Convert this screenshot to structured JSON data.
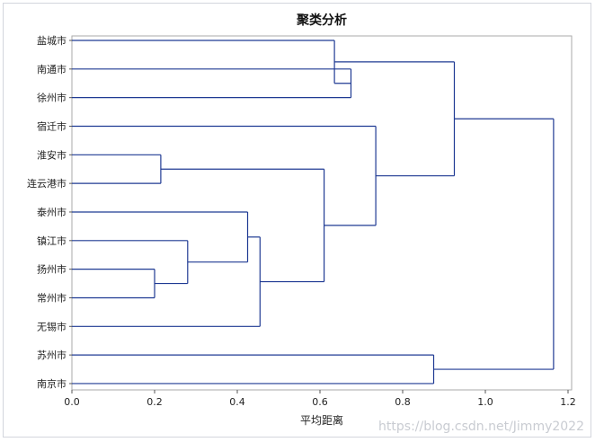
{
  "chart_data": {
    "type": "dendrogram",
    "title": "聚类分析",
    "xlabel": "平均距离",
    "ylabel": "",
    "xlim": [
      0,
      1.2
    ],
    "xticks": [
      "0.0",
      "0.2",
      "0.4",
      "0.6",
      "0.8",
      "1.0",
      "1.2"
    ],
    "leaves": [
      "盐城市",
      "南通市",
      "徐州市",
      "宿迁市",
      "淮安市",
      "连云港市",
      "泰州市",
      "镇江市",
      "扬州市",
      "常州市",
      "无锡市",
      "苏州市",
      "南京市"
    ],
    "merges": [
      {
        "left": "扬州市",
        "right": "常州市",
        "height": 0.2
      },
      {
        "left": "淮安市",
        "right": "连云港市",
        "height": 0.215
      },
      {
        "left": "镇江市",
        "right": "扬州市+常州市",
        "height": 0.28
      },
      {
        "left": "泰州市",
        "right": "镇江市+扬州市+常州市",
        "height": 0.425
      },
      {
        "left": "泰州市+镇江市+扬州市+常州市",
        "right": "无锡市",
        "height": 0.455
      },
      {
        "left": "淮安市+连云港市",
        "right": "泰州市+镇江市+扬州市+常州市+无锡市",
        "height": 0.61
      },
      {
        "left": "南通市",
        "right": "徐州市",
        "height": 0.675
      },
      {
        "left": "盐城市",
        "right": "南通市+徐州市",
        "height": 0.635
      },
      {
        "left": "宿迁市",
        "right": "淮安市+连云港市+泰州市+镇江市+扬州市+常州市+无锡市",
        "height": 0.735
      },
      {
        "left": "苏州市",
        "right": "南京市",
        "height": 0.875
      },
      {
        "left": "盐城市+南通市+徐州市",
        "right": "宿迁市+淮安市+连云港市+泰州市+镇江市+扬州市+常州市+无锡市",
        "height": 0.925
      },
      {
        "left": "盐城市+南通市+徐州市+宿迁市+淮安市+连云港市+泰州市+镇江市+扬州市+常州市+无锡市",
        "right": "苏州市+南京市",
        "height": 1.165
      }
    ],
    "colors": {
      "line": "#1f3a93",
      "frame": "#aaaaaa"
    }
  },
  "watermark": "https://blog.csdn.net/Jimmy2022"
}
